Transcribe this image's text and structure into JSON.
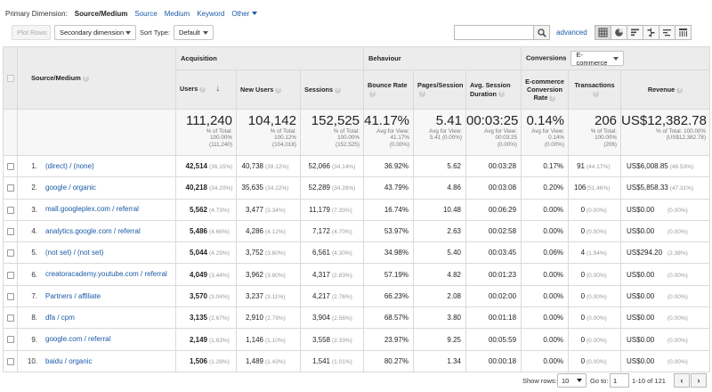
{
  "primary_dimension": {
    "label": "Primary Dimension:",
    "selected": "Source/Medium",
    "options": [
      "Source",
      "Medium",
      "Keyword"
    ],
    "other": "Other"
  },
  "toolbar": {
    "plot_rows": "Plot Rows",
    "secondary_dimension": "Secondary dimension",
    "sort_type_label": "Sort Type:",
    "sort_type_value": "Default",
    "search_value": "",
    "advanced": "advanced"
  },
  "colors": {
    "link": "#1a5aa6",
    "header_bg": "#ececec",
    "total_bg": "#f7f7f7"
  },
  "table": {
    "groups": {
      "acquisition": "Acquisition",
      "behaviour": "Behaviour",
      "conversions": "Conversions",
      "conversions_select": "E-commerce"
    },
    "columns": {
      "source_medium": "Source/Medium",
      "users": "Users",
      "new_users": "New Users",
      "sessions": "Sessions",
      "bounce_rate": "Bounce Rate",
      "pages_session": "Pages/Session",
      "avg_duration_1": "Avg. Session",
      "avg_duration_2": "Duration",
      "conv_rate_1": "E-commerce",
      "conv_rate_2": "Conversion",
      "conv_rate_3": "Rate",
      "transactions": "Transactions",
      "revenue": "Revenue"
    },
    "totals": {
      "users": {
        "big": "111,240",
        "l1": "% of Total:",
        "l2": "100.00%",
        "l3": "(111,240)"
      },
      "new_users": {
        "big": "104,142",
        "l1": "% of Total:",
        "l2": "100.12%",
        "l3": "(104,018)"
      },
      "sessions": {
        "big": "152,525",
        "l1": "% of Total:",
        "l2": "100.00%",
        "l3": "(152,525)"
      },
      "bounce_rate": {
        "big": "41.17%",
        "l1": "Avg for View:",
        "l2": "41.17%",
        "l3": "(0.00%)"
      },
      "pages_session": {
        "big": "5.41",
        "l1": "Avg for View:",
        "l2": "5.41 (0.00%)",
        "l3": ""
      },
      "avg_duration": {
        "big": "00:03:25",
        "l1": "Avg for View:",
        "l2": "00:03:25",
        "l3": "(0.00%)"
      },
      "conv_rate": {
        "big": "0.14%",
        "l1": "Avg for View: 0.14%",
        "l2": "(0.00%)",
        "l3": ""
      },
      "transactions": {
        "big": "206",
        "l1": "% of Total:",
        "l2": "100.00%",
        "l3": "(206)"
      },
      "revenue": {
        "big": "US$12,382.78",
        "l1": "% of Total: 100.00%",
        "l2": "(US$12,382.78)",
        "l3": ""
      }
    },
    "rows": [
      {
        "idx": "1.",
        "source": "(direct) / (none)",
        "users": "42,514",
        "users_pct": "(36.15%)",
        "new_users": "40,738",
        "new_users_pct": "(39.12%)",
        "sessions": "52,066",
        "sessions_pct": "(34.14%)",
        "bounce": "36.92%",
        "pps": "5.62",
        "dur": "00:03:28",
        "conv": "0.17%",
        "tx": "91",
        "tx_pct": "(44.17%)",
        "rev": "US$6,008.85",
        "rev_pct": "(48.53%)"
      },
      {
        "idx": "2.",
        "source": "google / organic",
        "users": "40,218",
        "users_pct": "(34.20%)",
        "new_users": "35,635",
        "new_users_pct": "(34.22%)",
        "sessions": "52,289",
        "sessions_pct": "(34.28%)",
        "bounce": "43.79%",
        "pps": "4.86",
        "dur": "00:03:08",
        "conv": "0.20%",
        "tx": "106",
        "tx_pct": "(51.46%)",
        "rev": "US$5,858.33",
        "rev_pct": "(47.31%)"
      },
      {
        "idx": "3.",
        "source": "mall.googleplex.com / referral",
        "users": "5,562",
        "users_pct": "(4.73%)",
        "new_users": "3,477",
        "new_users_pct": "(3.34%)",
        "sessions": "11,179",
        "sessions_pct": "(7.33%)",
        "bounce": "16.74%",
        "pps": "10.48",
        "dur": "00:06:29",
        "conv": "0.00%",
        "tx": "0",
        "tx_pct": "(0.00%)",
        "rev": "US$0.00",
        "rev_pct": "(0.00%)"
      },
      {
        "idx": "4.",
        "source": "analytics.google.com / referral",
        "users": "5,486",
        "users_pct": "(4.66%)",
        "new_users": "4,286",
        "new_users_pct": "(4.12%)",
        "sessions": "7,172",
        "sessions_pct": "(4.70%)",
        "bounce": "53.97%",
        "pps": "2.63",
        "dur": "00:02:58",
        "conv": "0.00%",
        "tx": "0",
        "tx_pct": "(0.00%)",
        "rev": "US$0.00",
        "rev_pct": "(0.00%)"
      },
      {
        "idx": "5.",
        "source": "(not set) / (not set)",
        "users": "5,044",
        "users_pct": "(4.29%)",
        "new_users": "3,752",
        "new_users_pct": "(3.60%)",
        "sessions": "6,561",
        "sessions_pct": "(4.30%)",
        "bounce": "34.98%",
        "pps": "5.40",
        "dur": "00:03:45",
        "conv": "0.06%",
        "tx": "4",
        "tx_pct": "(1.94%)",
        "rev": "US$294.20",
        "rev_pct": "(2.38%)"
      },
      {
        "idx": "6.",
        "source": "creatoracademy.youtube.com / referral",
        "users": "4,049",
        "users_pct": "(3.44%)",
        "new_users": "3,962",
        "new_users_pct": "(3.80%)",
        "sessions": "4,317",
        "sessions_pct": "(2.83%)",
        "bounce": "57.19%",
        "pps": "4.82",
        "dur": "00:01:23",
        "conv": "0.00%",
        "tx": "0",
        "tx_pct": "(0.00%)",
        "rev": "US$0.00",
        "rev_pct": "(0.00%)"
      },
      {
        "idx": "7.",
        "source": "Partners / affiliate",
        "users": "3,570",
        "users_pct": "(3.04%)",
        "new_users": "3,237",
        "new_users_pct": "(3.11%)",
        "sessions": "4,217",
        "sessions_pct": "(2.76%)",
        "bounce": "66.23%",
        "pps": "2.08",
        "dur": "00:02:00",
        "conv": "0.00%",
        "tx": "0",
        "tx_pct": "(0.00%)",
        "rev": "US$0.00",
        "rev_pct": "(0.00%)"
      },
      {
        "idx": "8.",
        "source": "dfa / cpm",
        "users": "3,135",
        "users_pct": "(2.67%)",
        "new_users": "2,910",
        "new_users_pct": "(2.79%)",
        "sessions": "3,904",
        "sessions_pct": "(2.56%)",
        "bounce": "68.57%",
        "pps": "3.80",
        "dur": "00:01:18",
        "conv": "0.00%",
        "tx": "0",
        "tx_pct": "(0.00%)",
        "rev": "US$0.00",
        "rev_pct": "(0.00%)"
      },
      {
        "idx": "9.",
        "source": "google.com / referral",
        "users": "2,149",
        "users_pct": "(1.83%)",
        "new_users": "1,146",
        "new_users_pct": "(1.10%)",
        "sessions": "3,558",
        "sessions_pct": "(2.33%)",
        "bounce": "23.97%",
        "pps": "9.25",
        "dur": "00:05:59",
        "conv": "0.00%",
        "tx": "0",
        "tx_pct": "(0.00%)",
        "rev": "US$0.00",
        "rev_pct": "(0.00%)"
      },
      {
        "idx": "10.",
        "source": "baidu / organic",
        "users": "1,506",
        "users_pct": "(1.28%)",
        "new_users": "1,489",
        "new_users_pct": "(1.43%)",
        "sessions": "1,541",
        "sessions_pct": "(1.01%)",
        "bounce": "80.27%",
        "pps": "1.34",
        "dur": "00:00:18",
        "conv": "0.00%",
        "tx": "0",
        "tx_pct": "(0.00%)",
        "rev": "US$0.00",
        "rev_pct": "(0.00%)"
      }
    ]
  },
  "footer": {
    "show_rows_label": "Show rows:",
    "show_rows_value": "10",
    "goto_label": "Go to:",
    "goto_value": "1",
    "range": "1-10 of 121"
  }
}
